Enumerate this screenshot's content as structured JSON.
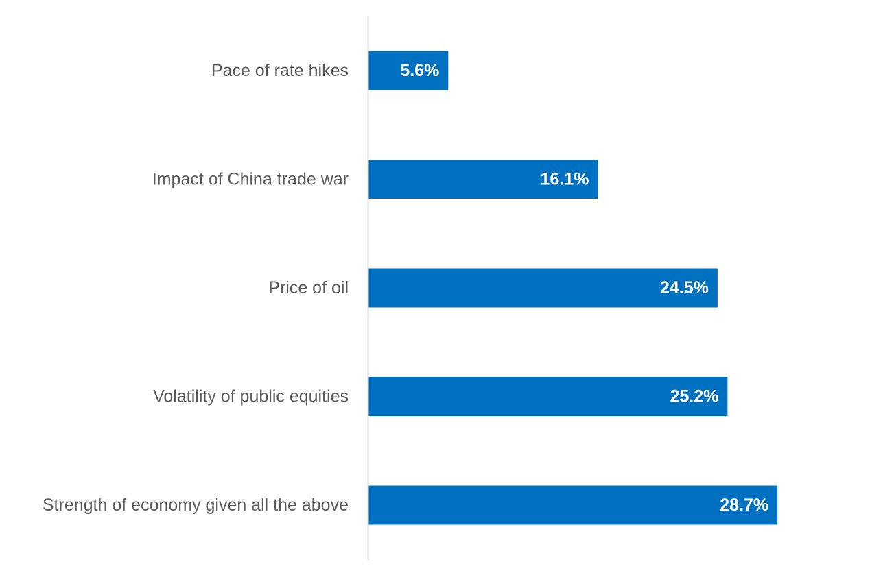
{
  "chart_data": {
    "type": "bar",
    "orientation": "horizontal",
    "title": "",
    "xlabel": "",
    "ylabel": "",
    "categories": [
      "Pace of rate hikes",
      "Impact of China trade war",
      "Price of oil",
      "Volatility of public equities",
      "Strength of economy given all the above"
    ],
    "values": [
      5.6,
      16.1,
      24.5,
      25.2,
      28.7
    ],
    "value_labels": [
      "5.6%",
      "16.1%",
      "24.5%",
      "25.2%",
      "28.7%"
    ],
    "unit": "%",
    "xlim": [
      0,
      30
    ],
    "grid": false,
    "legend": "none",
    "colors": {
      "bar": "#0070C0",
      "category_text": "#595959",
      "value_text": "#FFFFFF",
      "axis": "#D9D9D9"
    }
  }
}
